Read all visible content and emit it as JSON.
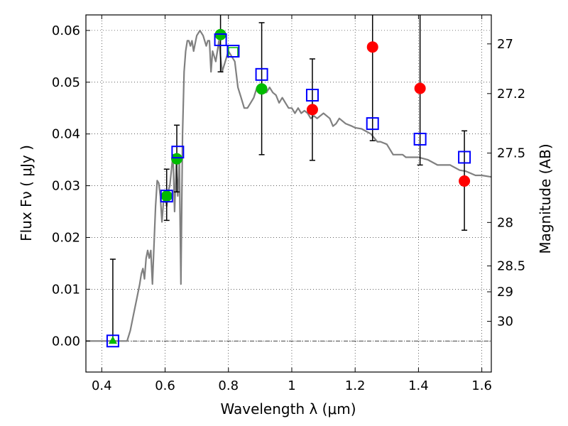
{
  "chart_data": {
    "type": "scatter",
    "xlabel": "Wavelength  λ (μm)",
    "ylabel": "Flux  Fν  ( μJy )",
    "ylabel_right": "Magnitude (AB)",
    "xlim": [
      0.35,
      1.63
    ],
    "ylim": [
      -0.006,
      0.063
    ],
    "grid": true,
    "x_ticks": [
      0.4,
      0.6,
      0.8,
      1.0,
      1.2,
      1.4,
      1.6
    ],
    "x_tick_labels": [
      "0.4",
      "0.6",
      "0.8",
      "1",
      "1.2",
      "1.4",
      "1.6"
    ],
    "y_ticks": [
      0.0,
      0.01,
      0.02,
      0.03,
      0.04,
      0.05,
      0.06
    ],
    "y_tick_labels": [
      "0.00",
      "0.01",
      "0.02",
      "0.03",
      "0.04",
      "0.05",
      "0.06"
    ],
    "right_ticks": [
      {
        "label": "27",
        "flux": 0.0574
      },
      {
        "label": "27.2",
        "flux": 0.0478
      },
      {
        "label": "27.5",
        "flux": 0.0363
      },
      {
        "label": "28",
        "flux": 0.0229
      },
      {
        "label": "28.5",
        "flux": 0.0145
      },
      {
        "label": "29",
        "flux": 0.0095
      },
      {
        "label": "30",
        "flux": 0.0038
      }
    ],
    "model_sed": {
      "color": "#808080",
      "x": [
        0.35,
        0.48,
        0.49,
        0.5,
        0.51,
        0.52,
        0.525,
        0.53,
        0.535,
        0.54,
        0.545,
        0.55,
        0.555,
        0.56,
        0.57,
        0.575,
        0.58,
        0.585,
        0.59,
        0.595,
        0.6,
        0.605,
        0.61,
        0.615,
        0.62,
        0.625,
        0.63,
        0.635,
        0.64,
        0.645,
        0.65,
        0.655,
        0.66,
        0.665,
        0.67,
        0.675,
        0.68,
        0.685,
        0.69,
        0.7,
        0.71,
        0.72,
        0.73,
        0.735,
        0.74,
        0.745,
        0.75,
        0.755,
        0.76,
        0.77,
        0.78,
        0.79,
        0.8,
        0.81,
        0.82,
        0.83,
        0.84,
        0.85,
        0.86,
        0.87,
        0.88,
        0.89,
        0.9,
        0.91,
        0.92,
        0.93,
        0.94,
        0.95,
        0.96,
        0.97,
        0.98,
        0.99,
        1.0,
        1.01,
        1.02,
        1.03,
        1.04,
        1.05,
        1.06,
        1.07,
        1.08,
        1.1,
        1.12,
        1.13,
        1.14,
        1.15,
        1.17,
        1.19,
        1.2,
        1.22,
        1.25,
        1.27,
        1.28,
        1.3,
        1.32,
        1.35,
        1.36,
        1.4,
        1.43,
        1.46,
        1.5,
        1.53,
        1.55,
        1.58,
        1.6,
        1.63
      ],
      "y": [
        0.0,
        0.0,
        0.002,
        0.005,
        0.008,
        0.011,
        0.013,
        0.014,
        0.012,
        0.016,
        0.0175,
        0.016,
        0.0175,
        0.011,
        0.026,
        0.031,
        0.0305,
        0.028,
        0.023,
        0.027,
        0.028,
        0.026,
        0.029,
        0.03,
        0.033,
        0.036,
        0.025,
        0.034,
        0.028,
        0.035,
        0.011,
        0.04,
        0.052,
        0.056,
        0.058,
        0.058,
        0.057,
        0.058,
        0.056,
        0.059,
        0.06,
        0.059,
        0.057,
        0.058,
        0.058,
        0.052,
        0.056,
        0.055,
        0.054,
        0.058,
        0.052,
        0.054,
        0.056,
        0.055,
        0.054,
        0.049,
        0.047,
        0.045,
        0.045,
        0.046,
        0.047,
        0.049,
        0.0495,
        0.048,
        0.048,
        0.049,
        0.048,
        0.0475,
        0.046,
        0.047,
        0.046,
        0.045,
        0.045,
        0.044,
        0.045,
        0.044,
        0.0445,
        0.044,
        0.043,
        0.0435,
        0.043,
        0.044,
        0.043,
        0.0415,
        0.042,
        0.043,
        0.042,
        0.0415,
        0.0412,
        0.041,
        0.04,
        0.0385,
        0.0385,
        0.038,
        0.036,
        0.036,
        0.0355,
        0.0355,
        0.035,
        0.034,
        0.034,
        0.033,
        0.0328,
        0.032,
        0.032,
        0.0317
      ]
    },
    "model_fluxes": {
      "color": "#0000ff",
      "marker": "square",
      "x": [
        0.435,
        0.605,
        0.64,
        0.775,
        0.815,
        0.905,
        1.065,
        1.255,
        1.405,
        1.545
      ],
      "y": [
        0.0,
        0.028,
        0.0365,
        0.0582,
        0.056,
        0.0515,
        0.0475,
        0.042,
        0.039,
        0.0355
      ]
    },
    "observed_green": {
      "color": "#00bb00",
      "marker": "circle",
      "x": [
        0.605,
        0.637,
        0.775,
        0.905
      ],
      "y": [
        0.028,
        0.0352,
        0.0592,
        0.0487
      ]
    },
    "observed_green_open": {
      "color": "#00bb00",
      "marker": "square-open",
      "x": [
        0.815
      ],
      "y": [
        0.0558
      ]
    },
    "observed_green_limit": {
      "color": "#00bb00",
      "marker": "triangle",
      "x": [
        0.435
      ],
      "y": [
        0.0
      ]
    },
    "observed_red": {
      "color": "#ff0000",
      "marker": "circle",
      "x": [
        1.065,
        1.255,
        1.405,
        1.545
      ],
      "y": [
        0.0447,
        0.0568,
        0.0488,
        0.0309
      ]
    },
    "error_bars": [
      {
        "x": 0.435,
        "low": 0.0,
        "high": 0.0158
      },
      {
        "x": 0.605,
        "low": 0.0233,
        "high": 0.0332
      },
      {
        "x": 0.637,
        "low": 0.0288,
        "high": 0.0417
      },
      {
        "x": 0.775,
        "low": 0.052,
        "high": 0.066
      },
      {
        "x": 0.905,
        "low": 0.036,
        "high": 0.0615
      },
      {
        "x": 1.065,
        "low": 0.0349,
        "high": 0.0545
      },
      {
        "x": 1.255,
        "low": 0.0387,
        "high": 0.066
      },
      {
        "x": 1.405,
        "low": 0.034,
        "high": 0.066
      },
      {
        "x": 1.545,
        "low": 0.0214,
        "high": 0.0406
      }
    ]
  }
}
